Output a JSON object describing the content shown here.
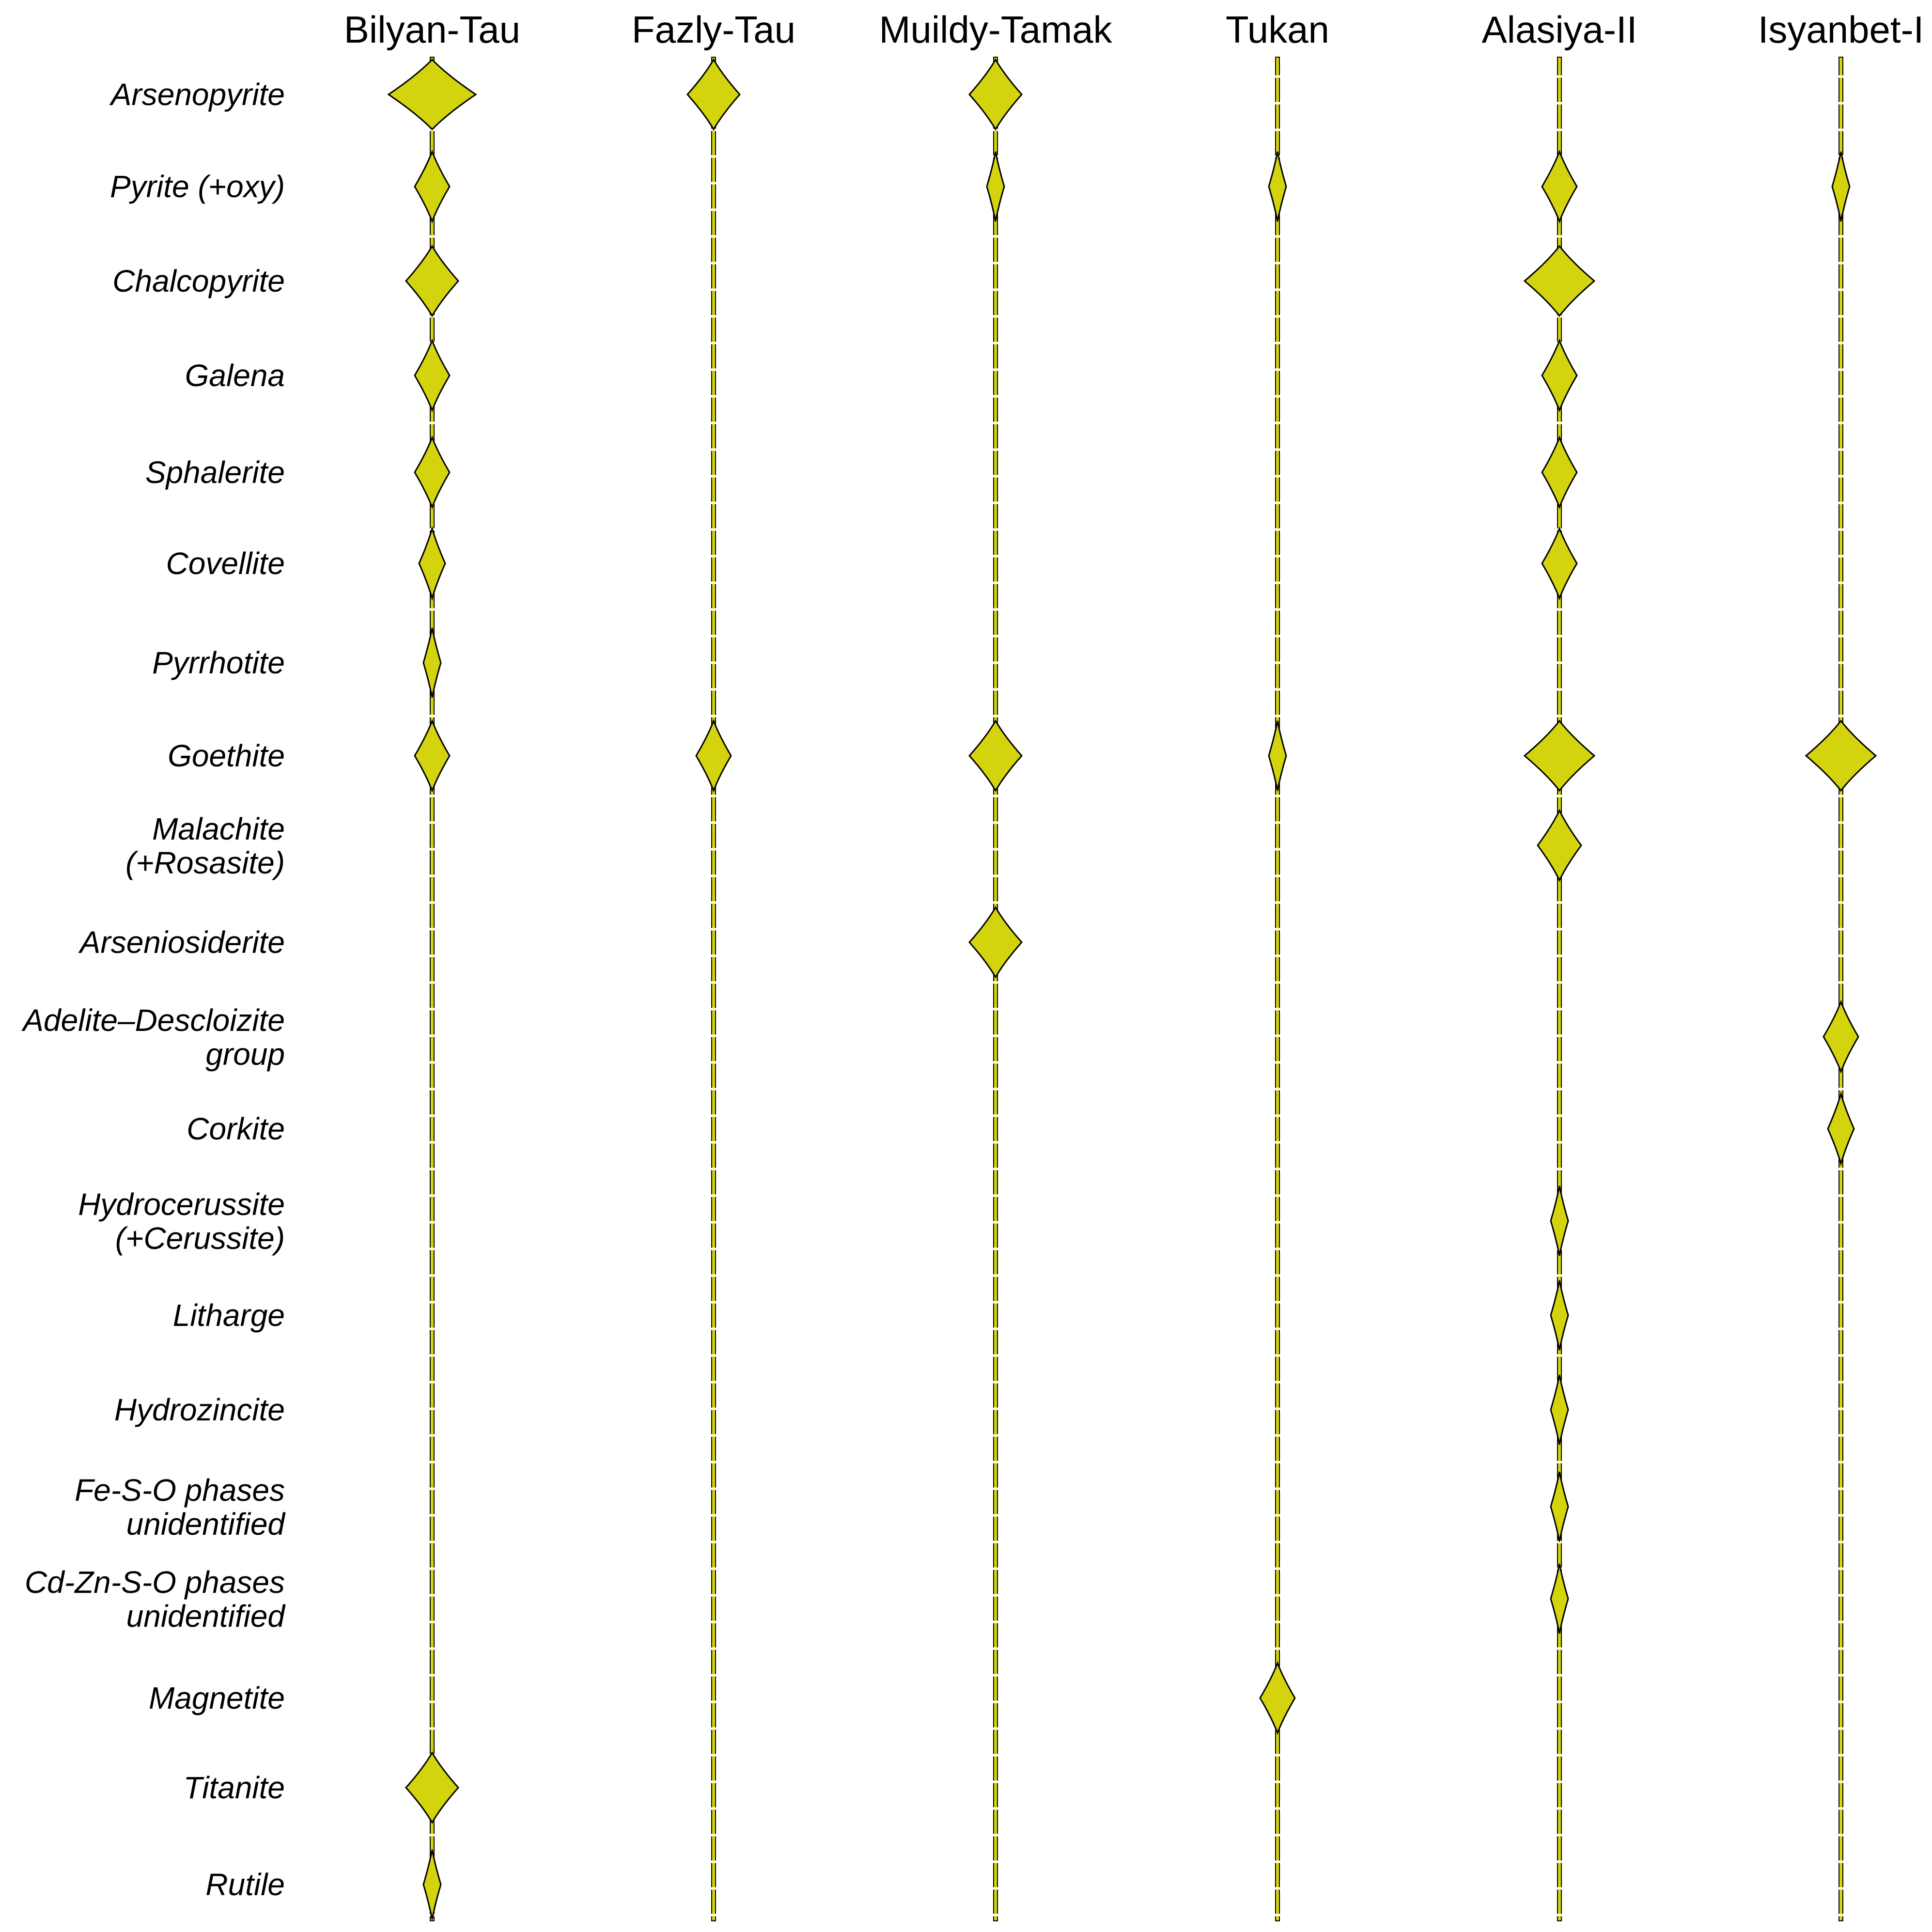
{
  "chart_data": {
    "type": "spindle",
    "title": "",
    "sites": [
      "Bilyan-Tau",
      "Fazly-Tau",
      "Muildy-Tamak",
      "Tukan",
      "Alasiya-II",
      "Isyanbet-I"
    ],
    "minerals": [
      {
        "lines": [
          "Arsenopyrite"
        ]
      },
      {
        "lines": [
          "Pyrite (+oxy)"
        ]
      },
      {
        "lines": [
          "Chalcopyrite"
        ]
      },
      {
        "lines": [
          "Galena"
        ]
      },
      {
        "lines": [
          "Sphalerite"
        ]
      },
      {
        "lines": [
          "Covellite"
        ]
      },
      {
        "lines": [
          "Pyrrhotite"
        ]
      },
      {
        "lines": [
          "Goethite"
        ]
      },
      {
        "lines": [
          "Malachite",
          "(+Rosasite)"
        ]
      },
      {
        "lines": [
          "Arseniosiderite"
        ]
      },
      {
        "lines": [
          "Adelite–Descloizite",
          "group"
        ]
      },
      {
        "lines": [
          "Corkite"
        ]
      },
      {
        "lines": [
          "Hydrocerussite",
          "(+Cerussite)"
        ]
      },
      {
        "lines": [
          "Litharge"
        ]
      },
      {
        "lines": [
          "Hydrozincite"
        ]
      },
      {
        "lines": [
          "Fe-S-O phases",
          "unidentified"
        ]
      },
      {
        "lines": [
          "Cd-Zn-S-O phases",
          "unidentified"
        ]
      },
      {
        "lines": [
          "Magnetite"
        ]
      },
      {
        "lines": [
          "Titanite"
        ]
      },
      {
        "lines": [
          "Rutile"
        ]
      }
    ],
    "abundance_scale": "relative abundance shown by spindle width; 0 = absent",
    "abundance": [
      [
        5,
        3,
        3,
        0,
        0,
        0
      ],
      [
        2,
        0,
        1,
        1,
        2,
        1
      ],
      [
        3,
        0,
        0,
        0,
        4,
        0
      ],
      [
        2,
        0,
        0,
        0,
        2,
        0
      ],
      [
        2,
        0,
        0,
        0,
        2,
        0
      ],
      [
        1.5,
        0,
        0,
        0,
        2,
        0
      ],
      [
        1,
        0,
        0,
        0,
        0,
        0
      ],
      [
        2,
        2,
        3,
        1,
        4,
        4
      ],
      [
        0,
        0,
        0,
        0,
        2.5,
        0
      ],
      [
        0,
        0,
        3,
        0,
        0,
        0
      ],
      [
        0,
        0,
        0,
        0,
        0,
        2
      ],
      [
        0,
        0,
        0,
        0,
        0,
        1.5
      ],
      [
        0,
        0,
        0,
        0,
        1,
        0
      ],
      [
        0,
        0,
        0,
        0,
        1,
        0
      ],
      [
        0,
        0,
        0,
        0,
        1,
        0
      ],
      [
        0,
        0,
        0,
        0,
        1,
        0
      ],
      [
        0,
        0,
        0,
        0,
        1,
        0
      ],
      [
        0,
        0,
        0,
        2,
        0,
        0
      ],
      [
        3,
        0,
        0,
        0,
        0,
        0
      ],
      [
        1,
        0,
        0,
        0,
        0,
        0
      ]
    ],
    "colors": {
      "fill": "#d4d40e",
      "stroke": "#000000",
      "text": "#000000",
      "background": "#ffffff"
    }
  }
}
